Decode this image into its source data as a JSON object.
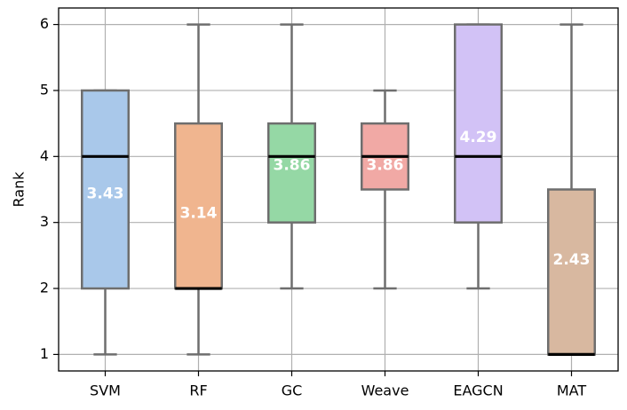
{
  "chart_data": {
    "type": "box",
    "title": "",
    "xlabel": "",
    "ylabel": "Rank",
    "ylim": [
      0.75,
      6.25
    ],
    "yticks": [
      1,
      2,
      3,
      4,
      5,
      6
    ],
    "grid": true,
    "categories": [
      "SVM",
      "RF",
      "GC",
      "Weave",
      "EAGCN",
      "MAT"
    ],
    "boxes": [
      {
        "label": "SVM",
        "whisker_low": 1,
        "q1": 2,
        "median": 4,
        "q3": 5,
        "whisker_high": 5,
        "mean": 3.43,
        "mean_label": "3.43",
        "color": "#a9c8ea"
      },
      {
        "label": "RF",
        "whisker_low": 1,
        "q1": 2,
        "median": 2,
        "q3": 4.5,
        "whisker_high": 6,
        "mean": 3.14,
        "mean_label": "3.14",
        "color": "#f0b58f"
      },
      {
        "label": "GC",
        "whisker_low": 2,
        "q1": 3,
        "median": 4,
        "q3": 4.5,
        "whisker_high": 6,
        "mean": 3.86,
        "mean_label": "3.86",
        "color": "#95d8a5"
      },
      {
        "label": "Weave",
        "whisker_low": 2,
        "q1": 3.5,
        "median": 4,
        "q3": 4.5,
        "whisker_high": 5,
        "mean": 3.86,
        "mean_label": "3.86",
        "color": "#f1a9a5"
      },
      {
        "label": "EAGCN",
        "whisker_low": 2,
        "q1": 3,
        "median": 4,
        "q3": 6,
        "whisker_high": 6,
        "mean": 4.29,
        "mean_label": "4.29",
        "color": "#d2c2f6"
      },
      {
        "label": "MAT",
        "whisker_low": 1,
        "q1": 1,
        "median": 1,
        "q3": 3.5,
        "whisker_high": 6,
        "mean": 2.43,
        "mean_label": "2.43",
        "color": "#d8b8a0"
      }
    ],
    "colors": {
      "box_edge": "#6e6e6e",
      "whisker": "#6e6e6e",
      "median": "#000000",
      "grid": "#b0b0b0",
      "mean_text": "#ffffff"
    }
  }
}
